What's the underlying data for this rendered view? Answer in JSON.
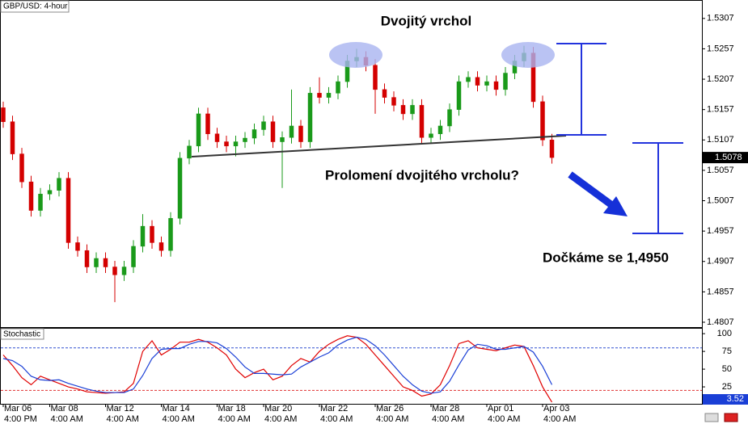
{
  "chart_data": [
    {
      "type": "candlestick",
      "title": "GBP/USD: 4-hour",
      "categories": [
        "Mar 06",
        null,
        null,
        null,
        null,
        "Mar 08",
        null,
        null,
        null,
        null,
        null,
        "Mar 12",
        null,
        null,
        null,
        null,
        null,
        "Mar 14",
        null,
        null,
        null,
        null,
        null,
        "Mar 18",
        null,
        null,
        null,
        null,
        "Mar 20",
        null,
        null,
        null,
        null,
        null,
        "Mar 22",
        null,
        null,
        null,
        null,
        null,
        "Mar 26",
        null,
        null,
        null,
        null,
        null,
        "Mar 28",
        null,
        null,
        null,
        null,
        null,
        "Apr 01",
        null,
        null,
        null,
        null,
        null,
        "Apr 03",
        null
      ],
      "times": [
        "4:00 PM",
        null,
        null,
        null,
        null,
        "4:00 AM",
        null,
        null,
        null,
        null,
        null,
        "4:00 AM",
        null,
        null,
        null,
        null,
        null,
        "4:00 AM",
        null,
        null,
        null,
        null,
        null,
        "4:00 AM",
        null,
        null,
        null,
        null,
        "4:00 AM",
        null,
        null,
        null,
        null,
        null,
        "4:00 AM",
        null,
        null,
        null,
        null,
        null,
        "4:00 AM",
        null,
        null,
        null,
        null,
        null,
        "4:00 AM",
        null,
        null,
        null,
        null,
        null,
        "4:00 AM",
        null,
        null,
        null,
        null,
        null,
        "4:00 AM",
        null
      ],
      "open": [
        1.516,
        1.5137,
        1.5084,
        1.5038,
        1.4991,
        1.5018,
        1.5024,
        1.5044,
        1.4938,
        1.4925,
        1.4898,
        1.4912,
        1.4898,
        1.4885,
        1.4898,
        1.4932,
        1.4965,
        1.4938,
        1.4925,
        1.4978,
        1.5077,
        1.5097,
        1.515,
        1.5117,
        1.5104,
        1.5097,
        1.5104,
        1.511,
        1.5124,
        1.5137,
        1.5104,
        1.5111,
        1.513,
        1.5104,
        1.5184,
        1.5177,
        1.5184,
        1.5203,
        1.5237,
        1.5243,
        1.523,
        1.519,
        1.5177,
        1.5164,
        1.515,
        1.5164,
        1.5111,
        1.5117,
        1.513,
        1.5157,
        1.5203,
        1.521,
        1.5197,
        1.5203,
        1.519,
        1.5217,
        1.5237,
        1.525,
        1.517,
        1.5107
      ],
      "high": [
        1.517,
        1.5147,
        1.5094,
        1.5048,
        1.5028,
        1.5034,
        1.5054,
        1.5054,
        1.4948,
        1.4935,
        1.4922,
        1.4922,
        1.4908,
        1.4908,
        1.4942,
        1.4985,
        1.4975,
        1.4948,
        1.4988,
        1.5087,
        1.5107,
        1.516,
        1.516,
        1.5127,
        1.5114,
        1.5114,
        1.512,
        1.5134,
        1.5147,
        1.5147,
        1.5121,
        1.519,
        1.514,
        1.5194,
        1.521,
        1.5194,
        1.5213,
        1.5247,
        1.5257,
        1.5253,
        1.524,
        1.52,
        1.5187,
        1.5174,
        1.5174,
        1.5174,
        1.5127,
        1.514,
        1.5167,
        1.5213,
        1.522,
        1.522,
        1.5213,
        1.5213,
        1.5227,
        1.5247,
        1.5262,
        1.526,
        1.518,
        1.5117
      ],
      "low": [
        1.5127,
        1.5074,
        1.5028,
        1.4981,
        1.4981,
        1.5008,
        1.5014,
        1.4928,
        1.4915,
        1.4888,
        1.4888,
        1.4888,
        1.484,
        1.4875,
        1.4888,
        1.4922,
        1.4928,
        1.4915,
        1.4915,
        1.4968,
        1.5067,
        1.5087,
        1.5107,
        1.5094,
        1.5087,
        1.508,
        1.5094,
        1.51,
        1.5114,
        1.5094,
        1.5028,
        1.5101,
        1.5094,
        1.5094,
        1.5167,
        1.5167,
        1.5174,
        1.5193,
        1.5227,
        1.522,
        1.515,
        1.5167,
        1.5154,
        1.514,
        1.514,
        1.5101,
        1.5101,
        1.5107,
        1.512,
        1.5147,
        1.5193,
        1.5187,
        1.5187,
        1.518,
        1.518,
        1.5207,
        1.5227,
        1.516,
        1.5097,
        1.5068
      ],
      "close": [
        1.5137,
        1.5084,
        1.5038,
        1.4991,
        1.5018,
        1.5024,
        1.5044,
        1.4938,
        1.4925,
        1.4898,
        1.4912,
        1.4898,
        1.4885,
        1.4898,
        1.4932,
        1.4965,
        1.4938,
        1.4925,
        1.4978,
        1.5077,
        1.5097,
        1.515,
        1.5117,
        1.5104,
        1.5097,
        1.5104,
        1.511,
        1.5124,
        1.5137,
        1.5104,
        1.5111,
        1.513,
        1.5104,
        1.5184,
        1.5177,
        1.5184,
        1.5203,
        1.5237,
        1.5243,
        1.523,
        1.519,
        1.5177,
        1.5164,
        1.515,
        1.5164,
        1.5111,
        1.5117,
        1.513,
        1.5157,
        1.5203,
        1.521,
        1.5197,
        1.5203,
        1.519,
        1.5217,
        1.5237,
        1.525,
        1.517,
        1.5107,
        1.5078
      ],
      "up_color": "#1a9a1a",
      "down_color": "#d40000",
      "ylim": [
        1.4799,
        1.5336
      ],
      "yticks": [
        1.5307,
        1.5257,
        1.5207,
        1.5157,
        1.5107,
        1.5057,
        1.5007,
        1.4957,
        1.4907,
        1.4857,
        1.4807
      ],
      "annotations": [
        "Dvojitý vrchol",
        "Prolomení dvojitého vrcholu?",
        "Dočkáme se 1,4950"
      ]
    },
    {
      "type": "line",
      "title": "Stochastic",
      "series": [
        {
          "color": "#e00000",
          "values": [
            70,
            55,
            38,
            28,
            40,
            35,
            30,
            25,
            22,
            18,
            17,
            16,
            17,
            18,
            30,
            75,
            90,
            70,
            78,
            88,
            88,
            92,
            88,
            80,
            70,
            50,
            38,
            45,
            50,
            35,
            40,
            55,
            65,
            60,
            75,
            85,
            92,
            97,
            95,
            85,
            70,
            55,
            40,
            25,
            20,
            12,
            15,
            28,
            55,
            86,
            90,
            80,
            78,
            76,
            80,
            84,
            82,
            55,
            25,
            3.52
          ]
        },
        {
          "color": "#1a3fd6",
          "values": [
            65,
            62,
            54,
            40,
            35,
            34,
            35,
            30,
            26,
            22,
            19,
            17,
            17,
            17,
            22,
            41,
            65,
            78,
            79,
            79,
            85,
            89,
            89,
            87,
            79,
            67,
            53,
            44,
            44,
            43,
            42,
            43,
            53,
            60,
            67,
            73,
            84,
            91,
            95,
            92,
            83,
            70,
            55,
            40,
            28,
            19,
            16,
            18,
            33,
            56,
            77,
            85,
            83,
            78,
            78,
            80,
            82,
            74,
            54,
            28
          ]
        }
      ],
      "ylim": [
        0,
        107
      ],
      "yticks": [
        100,
        75,
        50,
        25
      ],
      "levels": [
        {
          "value": 80,
          "color": "#3050d0"
        },
        {
          "value": 20,
          "color": "#e03030"
        }
      ]
    }
  ]
}
